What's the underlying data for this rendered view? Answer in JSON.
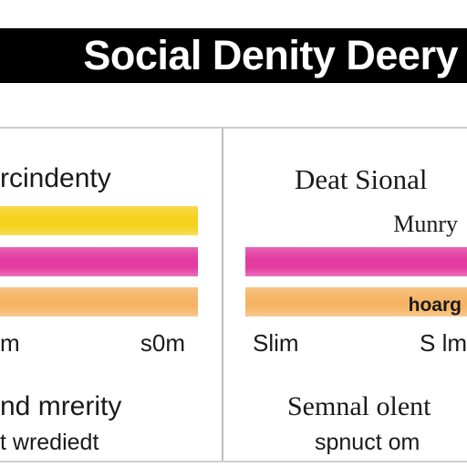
{
  "chart_data": [
    {
      "type": "bar",
      "orientation": "horizontal",
      "title": "Social Denity Deery",
      "heading": "rcindenty",
      "categories": [
        "",
        "",
        ""
      ],
      "values": [
        1,
        1,
        1
      ],
      "xlim": [
        0,
        1
      ],
      "colors": [
        "#f5d21e",
        "#e23ca0",
        "#f6b566"
      ],
      "start_label": "m",
      "end_label": "s0m",
      "footer_lines": [
        "nd mrerity",
        "t wrediedt"
      ]
    },
    {
      "type": "bar",
      "orientation": "horizontal",
      "heading": "Deat Sional",
      "sub_label": "Munry",
      "categories": [
        "",
        ""
      ],
      "values": [
        1,
        1
      ],
      "xlim": [
        0,
        1
      ],
      "colors": [
        "#e23ca0",
        "#f6b566"
      ],
      "bar_labels": [
        "",
        "hoarg"
      ],
      "start_label": "Slim",
      "end_label": "S lm",
      "footer_lines": [
        "Semnal olent",
        "spnuct om"
      ]
    }
  ]
}
